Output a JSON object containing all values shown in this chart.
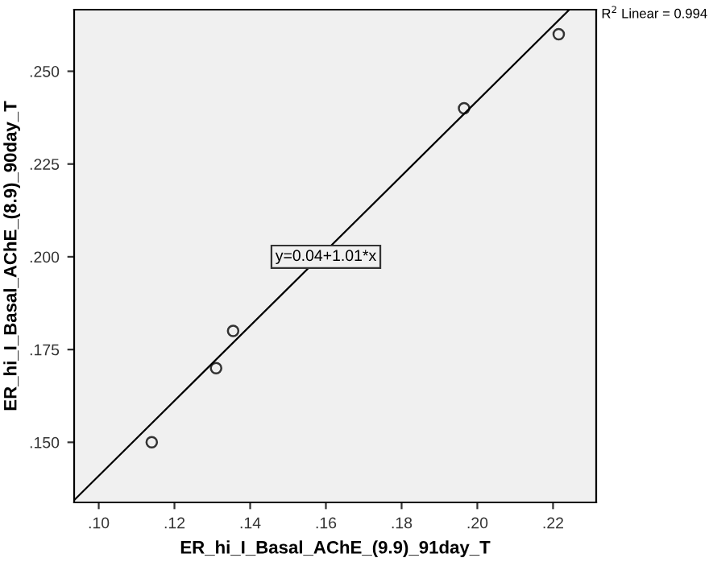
{
  "chart_data": {
    "type": "scatter",
    "xlabel": "ER_hi_I_Basal_AChE_(9.9)_91day_T",
    "ylabel": "ER_hi_I_Basal_AChE_(8.9)_90day_T",
    "x": [
      0.114,
      0.131,
      0.1355,
      0.1965,
      0.2215
    ],
    "series": [
      {
        "color": "#333333",
        "values": [
          0.15,
          0.17,
          0.18,
          0.24,
          0.26
        ],
        "marker": "circle"
      },
      {
        "type": "line",
        "color": "#000000",
        "x": [
          0.0935,
          0.2243
        ],
        "values": [
          0.1344,
          0.2666
        ]
      }
    ],
    "annotations": [
      {
        "text": "y=0.04+1.01*x",
        "x": 0.16,
        "y": 0.2
      },
      "R$^{2}$ Linear = 0.994"
    ],
    "xlim": [
      0.0935,
      0.2314
    ],
    "ylim": [
      0.1338,
      0.2666
    ],
    "xticks": [
      {
        "value": 0.1,
        "label": ".10"
      },
      {
        "value": 0.12,
        "label": ".12"
      },
      {
        "value": 0.14,
        "label": ".14"
      },
      {
        "value": 0.16,
        "label": ".16"
      },
      {
        "value": 0.18,
        "label": ".18"
      },
      {
        "value": 0.2,
        "label": ".20"
      },
      {
        "value": 0.22,
        "label": ".22"
      }
    ],
    "yticks": [
      {
        "value": 0.15,
        "label": ".150"
      },
      {
        "value": 0.175,
        "label": ".175"
      },
      {
        "value": 0.2,
        "label": ".200"
      },
      {
        "value": 0.225,
        "label": ".225"
      },
      {
        "value": 0.25,
        "label": ".250"
      }
    ],
    "grid": false,
    "legend": false
  }
}
